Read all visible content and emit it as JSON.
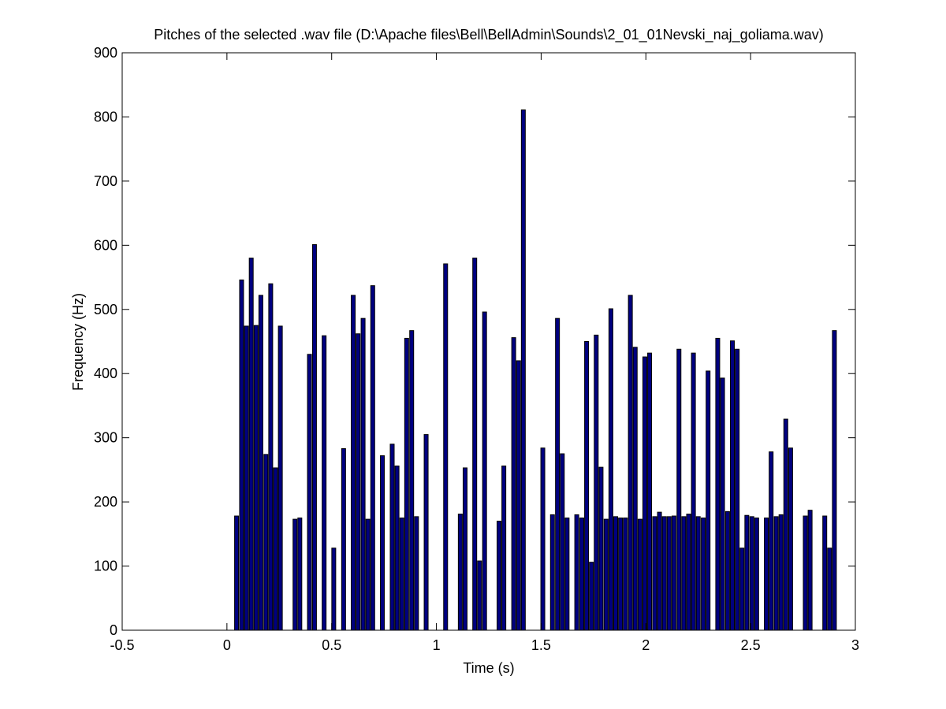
{
  "chart_data": {
    "type": "bar",
    "title": "Pitches of the selected .wav file (D:\\Apache files\\Bell\\BellAdmin\\Sounds\\2_01_01Nevski_naj_goliama.wav)",
    "xlabel": "Time (s)",
    "ylabel": "Frequency (Hz)",
    "color": "#000080",
    "x": [
      0.046,
      0.07,
      0.093,
      0.116,
      0.139,
      0.162,
      0.186,
      0.209,
      0.232,
      0.255,
      0.325,
      0.348,
      0.394,
      0.418,
      0.464,
      0.51,
      0.557,
      0.603,
      0.626,
      0.65,
      0.673,
      0.696,
      0.742,
      0.789,
      0.812,
      0.835,
      0.858,
      0.882,
      0.905,
      0.951,
      1.044,
      1.114,
      1.137,
      1.183,
      1.206,
      1.23,
      1.299,
      1.322,
      1.369,
      1.392,
      1.415,
      1.508,
      1.554,
      1.578,
      1.601,
      1.624,
      1.67,
      1.694,
      1.717,
      1.74,
      1.763,
      1.786,
      1.81,
      1.833,
      1.856,
      1.879,
      1.902,
      1.926,
      1.949,
      1.972,
      1.995,
      2.018,
      2.042,
      2.065,
      2.088,
      2.111,
      2.134,
      2.158,
      2.181,
      2.204,
      2.227,
      2.25,
      2.274,
      2.297,
      2.343,
      2.366,
      2.39,
      2.413,
      2.436,
      2.459,
      2.482,
      2.506,
      2.529,
      2.575,
      2.598,
      2.622,
      2.645,
      2.668,
      2.691,
      2.761,
      2.784,
      2.854,
      2.877,
      2.9
    ],
    "values": [
      178,
      546,
      474,
      580,
      475,
      522,
      274,
      540,
      253,
      474,
      173,
      175,
      430,
      601,
      459,
      128,
      283,
      522,
      462,
      486,
      173,
      537,
      272,
      290,
      256,
      175,
      455,
      467,
      177,
      305,
      571,
      181,
      253,
      580,
      108,
      496,
      170,
      256,
      456,
      420,
      811,
      284,
      180,
      486,
      275,
      175,
      180,
      175,
      450,
      106,
      460,
      254,
      173,
      501,
      177,
      175,
      175,
      522,
      441,
      173,
      426,
      432,
      177,
      184,
      177,
      177,
      178,
      438,
      177,
      181,
      432,
      177,
      175,
      404,
      455,
      393,
      185,
      451,
      438,
      128,
      179,
      177,
      175,
      175,
      278,
      177,
      180,
      329,
      284,
      178,
      187,
      178,
      128,
      467
    ],
    "xlim": [
      -0.5,
      3
    ],
    "xticks": [
      -0.5,
      0,
      0.5,
      1,
      1.5,
      2,
      2.5,
      3
    ],
    "ylim": [
      0,
      900
    ],
    "yticks": [
      0,
      100,
      200,
      300,
      400,
      500,
      600,
      700,
      800,
      900
    ],
    "grid": false
  }
}
